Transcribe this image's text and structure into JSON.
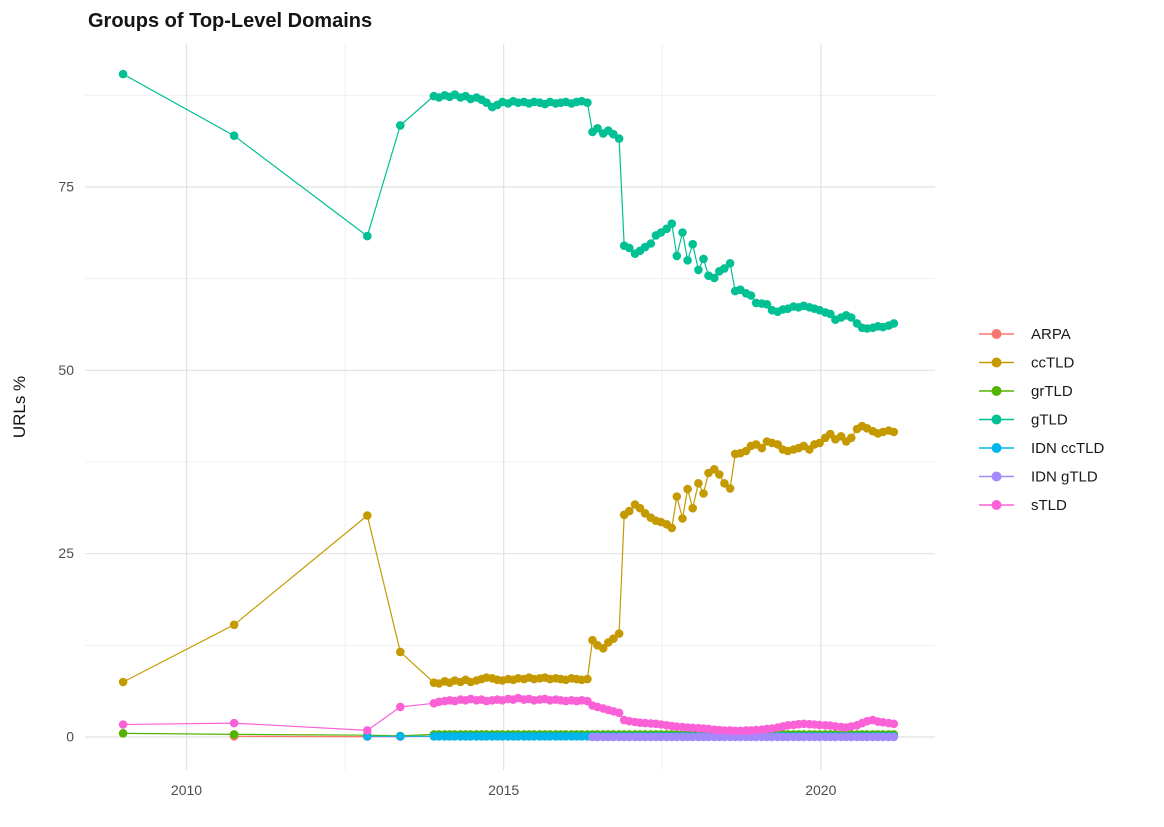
{
  "chart_data": {
    "type": "line",
    "title": "Groups of Top-Level Domains",
    "xlabel": "",
    "ylabel": "URLs %",
    "x_ticks": [
      2010,
      2015,
      2020
    ],
    "x_minor_ticks": [
      2012.5,
      2017.5
    ],
    "y_ticks": [
      0,
      25,
      50,
      75
    ],
    "y_minor_ticks": [
      12.5,
      37.5,
      62.5,
      87.5
    ],
    "xlim": [
      2008.4,
      2021.8
    ],
    "ylim": [
      -4.5,
      94.5
    ],
    "grid": true,
    "legend_position": "right",
    "colors": {
      "background": "#ffffff",
      "grid_major": "#e2e2e2",
      "grid_minor": "#f0f0f0",
      "axis_text": "#4d4d4d",
      "text": "#1a1a1a"
    },
    "x": [
      2009,
      2010.75,
      2012.85,
      2013.37,
      2013.9,
      2013.98,
      2014.07,
      2014.15,
      2014.23,
      2014.32,
      2014.4,
      2014.48,
      2014.57,
      2014.65,
      2014.73,
      2014.82,
      2014.9,
      2014.98,
      2015.07,
      2015.15,
      2015.23,
      2015.32,
      2015.4,
      2015.48,
      2015.57,
      2015.65,
      2015.73,
      2015.82,
      2015.9,
      2015.98,
      2016.07,
      2016.15,
      2016.23,
      2016.32,
      2016.4,
      2016.48,
      2016.57,
      2016.65,
      2016.73,
      2016.82,
      2016.9,
      2016.98,
      2017.07,
      2017.15,
      2017.23,
      2017.32,
      2017.4,
      2017.48,
      2017.57,
      2017.65,
      2017.73,
      2017.82,
      2017.9,
      2017.98,
      2018.07,
      2018.15,
      2018.23,
      2018.32,
      2018.4,
      2018.48,
      2018.57,
      2018.65,
      2018.73,
      2018.82,
      2018.9,
      2018.98,
      2019.07,
      2019.15,
      2019.23,
      2019.32,
      2019.4,
      2019.48,
      2019.57,
      2019.65,
      2019.73,
      2019.82,
      2019.9,
      2019.98,
      2020.07,
      2020.15,
      2020.23,
      2020.32,
      2020.4,
      2020.48,
      2020.57,
      2020.65,
      2020.73,
      2020.82,
      2020.9,
      2020.98,
      2021.07,
      2021.15
    ],
    "series": [
      {
        "name": "ARPA",
        "color": "#F8766D",
        "values": [
          null,
          0.1,
          0.05,
          0.05,
          0.1,
          0.1,
          0.1,
          0.1,
          0.1,
          0.1,
          0.1,
          0.1,
          0.1,
          0.1,
          0.1,
          0.1,
          0.1,
          0.1,
          0.1,
          0.1,
          0.1,
          0.1,
          0.1,
          0.1,
          0.1,
          0.1,
          0.1,
          0.1,
          0.1,
          0.1,
          0.1,
          0.1,
          0.1,
          0.1,
          0.1,
          0.1,
          0.1,
          0.1,
          0.1,
          0.1,
          0.1,
          0.1,
          0.1,
          0.1,
          0.1,
          0.1,
          0.1,
          0.1,
          0.1,
          0.1,
          0.1,
          0.1,
          0.1,
          0.1,
          0.1,
          0.1,
          0.1,
          0.1,
          0.1,
          0.1,
          0.1,
          0.1,
          0.1,
          0.1,
          0.1,
          0.1,
          0.1,
          0.1,
          0.1,
          0.1,
          0.1,
          0.1,
          0.1,
          0.1,
          0.1,
          0.1,
          0.1,
          0.1,
          0.1,
          0.1,
          0.1,
          0.1,
          0.1,
          0.1,
          0.1,
          0.1,
          0.1,
          0.1,
          0.1,
          0.1,
          0.1,
          0.1
        ]
      },
      {
        "name": "ccTLD",
        "color": "#C49A00",
        "values": [
          7.5,
          15.3,
          30.2,
          11.6,
          7.4,
          7.3,
          7.6,
          7.4,
          7.7,
          7.5,
          7.8,
          7.5,
          7.7,
          7.9,
          8.1,
          8.0,
          7.8,
          7.7,
          7.9,
          7.8,
          8.0,
          7.9,
          8.1,
          7.9,
          8.0,
          8.1,
          7.9,
          8.0,
          7.9,
          7.8,
          8.0,
          7.9,
          7.8,
          7.9,
          13.2,
          12.5,
          12.1,
          12.9,
          13.4,
          14.1,
          30.3,
          30.8,
          31.7,
          31.2,
          30.5,
          29.9,
          29.5,
          29.3,
          29.0,
          28.5,
          32.8,
          29.8,
          33.8,
          31.2,
          34.6,
          33.2,
          36.0,
          36.5,
          35.8,
          34.6,
          33.9,
          38.6,
          38.7,
          39.0,
          39.7,
          39.9,
          39.4,
          40.3,
          40.1,
          39.9,
          39.2,
          39.0,
          39.2,
          39.4,
          39.7,
          39.2,
          39.9,
          40.1,
          40.8,
          41.3,
          40.6,
          41.0,
          40.3,
          40.8,
          42.0,
          42.4,
          42.1,
          41.7,
          41.4,
          41.6,
          41.8,
          41.6
        ]
      },
      {
        "name": "grTLD",
        "color": "#53B400",
        "values": [
          0.5,
          0.35,
          0.25,
          0.15,
          0.35,
          0.35,
          0.35,
          0.35,
          0.35,
          0.35,
          0.35,
          0.35,
          0.35,
          0.35,
          0.35,
          0.35,
          0.35,
          0.35,
          0.35,
          0.35,
          0.35,
          0.35,
          0.35,
          0.35,
          0.35,
          0.35,
          0.35,
          0.35,
          0.35,
          0.35,
          0.35,
          0.35,
          0.35,
          0.35,
          0.35,
          0.35,
          0.35,
          0.35,
          0.35,
          0.35,
          0.35,
          0.35,
          0.35,
          0.35,
          0.35,
          0.35,
          0.35,
          0.35,
          0.35,
          0.35,
          0.35,
          0.35,
          0.35,
          0.35,
          0.35,
          0.35,
          0.35,
          0.35,
          0.35,
          0.35,
          0.35,
          0.35,
          0.35,
          0.35,
          0.35,
          0.35,
          0.35,
          0.35,
          0.35,
          0.35,
          0.35,
          0.35,
          0.35,
          0.35,
          0.35,
          0.35,
          0.35,
          0.35,
          0.35,
          0.35,
          0.35,
          0.35,
          0.35,
          0.35,
          0.35,
          0.35,
          0.35,
          0.35,
          0.35,
          0.35,
          0.35,
          0.35
        ]
      },
      {
        "name": "gTLD",
        "color": "#00C094",
        "values": [
          90.4,
          82.0,
          68.3,
          83.4,
          87.4,
          87.2,
          87.5,
          87.3,
          87.6,
          87.2,
          87.4,
          87.0,
          87.2,
          86.9,
          86.5,
          85.9,
          86.2,
          86.6,
          86.4,
          86.7,
          86.5,
          86.6,
          86.4,
          86.6,
          86.5,
          86.3,
          86.6,
          86.4,
          86.5,
          86.6,
          86.4,
          86.6,
          86.7,
          86.5,
          82.5,
          83.0,
          82.3,
          82.7,
          82.2,
          81.6,
          67.0,
          66.7,
          65.9,
          66.3,
          66.8,
          67.3,
          68.4,
          68.8,
          69.3,
          70.0,
          65.6,
          68.8,
          65.0,
          67.2,
          63.7,
          65.2,
          62.9,
          62.6,
          63.5,
          63.9,
          64.6,
          60.8,
          61.0,
          60.5,
          60.2,
          59.2,
          59.1,
          59.0,
          58.2,
          58.0,
          58.3,
          58.4,
          58.7,
          58.6,
          58.8,
          58.6,
          58.4,
          58.2,
          57.9,
          57.7,
          56.9,
          57.2,
          57.5,
          57.2,
          56.4,
          55.8,
          55.7,
          55.8,
          56.0,
          55.9,
          56.1,
          56.4
        ]
      },
      {
        "name": "IDN ccTLD",
        "color": "#00B6EB",
        "values": [
          null,
          null,
          0.1,
          0.1,
          0.1,
          0.1,
          0.1,
          0.1,
          0.1,
          0.1,
          0.1,
          0.1,
          0.1,
          0.1,
          0.1,
          0.1,
          0.1,
          0.1,
          0.1,
          0.1,
          0.1,
          0.1,
          0.1,
          0.1,
          0.1,
          0.1,
          0.1,
          0.1,
          0.1,
          0.1,
          0.1,
          0.1,
          0.1,
          0.1,
          0.1,
          0.1,
          0.1,
          0.1,
          0.1,
          0.1,
          0.1,
          0.1,
          0.1,
          0.1,
          0.1,
          0.1,
          0.1,
          0.1,
          0.1,
          0.1,
          0.1,
          0.1,
          0.1,
          0.1,
          0.1,
          0.1,
          0.1,
          0.1,
          0.1,
          0.1,
          0.1,
          0.1,
          0.1,
          0.1,
          0.1,
          0.1,
          0.1,
          0.1,
          0.1,
          0.1,
          0.1,
          0.1,
          0.1,
          0.1,
          0.1,
          0.1,
          0.1,
          0.1,
          0.1,
          0.1,
          0.1,
          0.1,
          0.1,
          0.1,
          0.1,
          0.1,
          0.1,
          0.1,
          0.1,
          0.1,
          0.1,
          0.1
        ]
      },
      {
        "name": "IDN gTLD",
        "color": "#A58AFF",
        "values": [
          null,
          null,
          null,
          null,
          null,
          null,
          null,
          null,
          null,
          null,
          null,
          null,
          null,
          null,
          null,
          null,
          null,
          null,
          null,
          null,
          null,
          null,
          null,
          null,
          null,
          null,
          null,
          null,
          null,
          null,
          null,
          null,
          null,
          null,
          0,
          0,
          0,
          0,
          0,
          0,
          0,
          0,
          0,
          0,
          0,
          0,
          0,
          0,
          0,
          0,
          0,
          0,
          0,
          0,
          0,
          0,
          0,
          0,
          0,
          0,
          0,
          0,
          0,
          0,
          0,
          0,
          0,
          0,
          0,
          0,
          0,
          0,
          0,
          0,
          0,
          0,
          0,
          0,
          0,
          0,
          0,
          0,
          0,
          0,
          0,
          0,
          0,
          0,
          0,
          0,
          0,
          0
        ]
      },
      {
        "name": "sTLD",
        "color": "#FB61D7",
        "values": [
          1.7,
          1.9,
          0.9,
          4.1,
          4.6,
          4.8,
          4.9,
          5.0,
          4.9,
          5.1,
          5.0,
          5.2,
          5.0,
          5.1,
          4.9,
          5.0,
          5.1,
          5.0,
          5.2,
          5.1,
          5.3,
          5.1,
          5.2,
          5.0,
          5.1,
          5.2,
          5.0,
          5.1,
          5.0,
          4.9,
          5.0,
          4.9,
          5.0,
          4.9,
          4.3,
          4.1,
          3.9,
          3.7,
          3.5,
          3.3,
          2.3,
          2.15,
          2.05,
          1.95,
          1.9,
          1.85,
          1.8,
          1.7,
          1.6,
          1.5,
          1.4,
          1.35,
          1.3,
          1.25,
          1.2,
          1.15,
          1.1,
          1.0,
          0.95,
          0.9,
          0.9,
          0.85,
          0.85,
          0.9,
          0.9,
          0.95,
          1.0,
          1.1,
          1.15,
          1.3,
          1.45,
          1.6,
          1.65,
          1.75,
          1.8,
          1.75,
          1.7,
          1.65,
          1.6,
          1.55,
          1.45,
          1.35,
          1.3,
          1.45,
          1.6,
          1.9,
          2.15,
          2.3,
          2.1,
          2.0,
          1.9,
          1.8
        ]
      }
    ]
  }
}
